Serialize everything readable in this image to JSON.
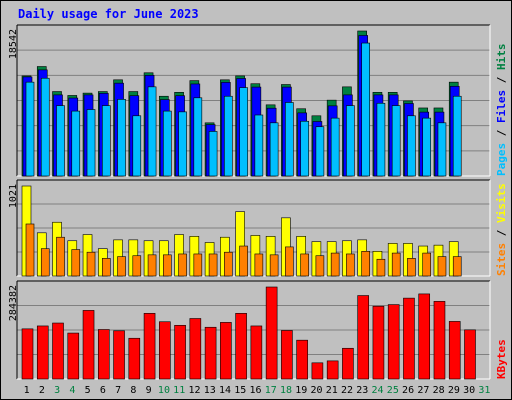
{
  "title": "Daily usage for June 2023",
  "chart_data": [
    {
      "type": "bar",
      "panel": "top",
      "ymax_label": "18542",
      "ylim": [
        0,
        18542
      ],
      "right_label_parts": [
        {
          "text": "Pages",
          "color": "#00bfff"
        },
        {
          "text": " / ",
          "color": "#000000"
        },
        {
          "text": "Files",
          "color": "#0000ff"
        },
        {
          "text": " / ",
          "color": "#000000"
        },
        {
          "text": "Hits",
          "color": "#008040"
        }
      ],
      "series": [
        {
          "name": "Hits",
          "color": "#008040",
          "values": [
            12800,
            14000,
            10800,
            10300,
            10600,
            10800,
            12300,
            10800,
            13200,
            10200,
            10700,
            12200,
            6800,
            12300,
            12800,
            11800,
            9100,
            11700,
            8600,
            7700,
            9700,
            11400,
            18542,
            10700,
            10700,
            9600,
            8700,
            8700,
            12000,
            0
          ]
        },
        {
          "name": "Files",
          "color": "#0000ff",
          "values": [
            12800,
            13700,
            10500,
            10100,
            10500,
            10700,
            12000,
            10400,
            13000,
            9900,
            10400,
            11900,
            6700,
            12100,
            12600,
            11500,
            8800,
            11500,
            8200,
            7100,
            9100,
            10500,
            18100,
            10500,
            10500,
            9400,
            8300,
            8300,
            11600,
            0
          ]
        },
        {
          "name": "Pages",
          "color": "#00bfff",
          "values": [
            12000,
            12500,
            9000,
            8300,
            8500,
            9000,
            9800,
            7700,
            11400,
            8300,
            8200,
            10000,
            5700,
            10200,
            11300,
            7800,
            6800,
            9400,
            7000,
            6300,
            7400,
            9000,
            17000,
            9300,
            9000,
            7700,
            7400,
            6800,
            10200,
            0
          ]
        }
      ]
    },
    {
      "type": "bar",
      "panel": "middle",
      "ymax_label": "1021",
      "ylim": [
        0,
        1021
      ],
      "right_label_parts": [
        {
          "text": "Sites",
          "color": "#ff8000"
        },
        {
          "text": " / ",
          "color": "#000000"
        },
        {
          "text": "Visits",
          "color": "#ffff00"
        }
      ],
      "series": [
        {
          "name": "Visits",
          "color": "#ffff00",
          "values": [
            1021,
            490,
            610,
            400,
            470,
            310,
            410,
            410,
            400,
            400,
            470,
            450,
            380,
            440,
            730,
            460,
            450,
            660,
            450,
            390,
            390,
            400,
            410,
            280,
            370,
            370,
            340,
            350,
            390,
            0
          ]
        },
        {
          "name": "Sites",
          "color": "#ff8000",
          "values": [
            590,
            310,
            440,
            300,
            270,
            200,
            220,
            230,
            240,
            240,
            250,
            250,
            250,
            270,
            340,
            250,
            240,
            330,
            250,
            230,
            260,
            250,
            280,
            190,
            260,
            200,
            260,
            220,
            220,
            0
          ]
        }
      ]
    },
    {
      "type": "bar",
      "panel": "bottom",
      "ymax_label": "284382",
      "ylim": [
        0,
        284382
      ],
      "right_label_parts": [
        {
          "text": "KBytes",
          "color": "#ff0000"
        }
      ],
      "series": [
        {
          "name": "KBytes",
          "color": "#ff0000",
          "values": [
            155000,
            164000,
            173000,
            142000,
            212000,
            153000,
            149000,
            126000,
            203000,
            177000,
            166000,
            187000,
            160000,
            175000,
            203000,
            164000,
            284382,
            150000,
            120000,
            50000,
            56000,
            95000,
            258000,
            225000,
            230000,
            250000,
            263000,
            240000,
            178000,
            152000
          ]
        }
      ]
    }
  ],
  "x_labels": [
    {
      "day": "1",
      "color": "#000000"
    },
    {
      "day": "2",
      "color": "#000000"
    },
    {
      "day": "3",
      "color": "#008040"
    },
    {
      "day": "4",
      "color": "#008040"
    },
    {
      "day": "5",
      "color": "#000000"
    },
    {
      "day": "6",
      "color": "#000000"
    },
    {
      "day": "7",
      "color": "#000000"
    },
    {
      "day": "8",
      "color": "#000000"
    },
    {
      "day": "9",
      "color": "#000000"
    },
    {
      "day": "10",
      "color": "#008040"
    },
    {
      "day": "11",
      "color": "#008040"
    },
    {
      "day": "12",
      "color": "#000000"
    },
    {
      "day": "13",
      "color": "#000000"
    },
    {
      "day": "14",
      "color": "#000000"
    },
    {
      "day": "15",
      "color": "#000000"
    },
    {
      "day": "16",
      "color": "#000000"
    },
    {
      "day": "17",
      "color": "#008040"
    },
    {
      "day": "18",
      "color": "#008040"
    },
    {
      "day": "19",
      "color": "#000000"
    },
    {
      "day": "20",
      "color": "#000000"
    },
    {
      "day": "21",
      "color": "#000000"
    },
    {
      "day": "22",
      "color": "#000000"
    },
    {
      "day": "23",
      "color": "#000000"
    },
    {
      "day": "24",
      "color": "#008040"
    },
    {
      "day": "25",
      "color": "#008040"
    },
    {
      "day": "26",
      "color": "#000000"
    },
    {
      "day": "27",
      "color": "#000000"
    },
    {
      "day": "28",
      "color": "#000000"
    },
    {
      "day": "29",
      "color": "#000000"
    },
    {
      "day": "30",
      "color": "#000000"
    },
    {
      "day": "31",
      "color": "#008040"
    }
  ]
}
